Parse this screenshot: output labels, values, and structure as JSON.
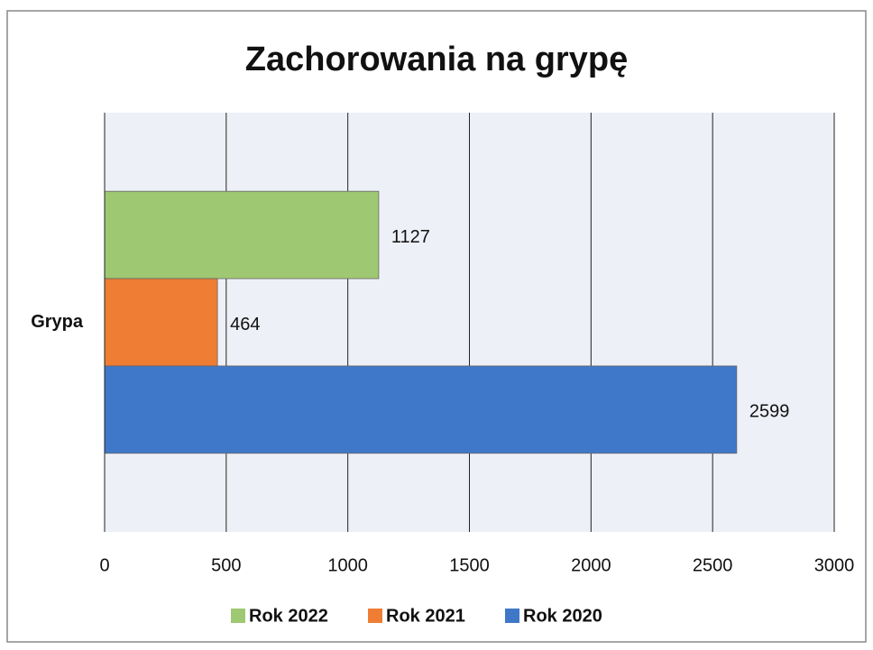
{
  "chart_data": {
    "type": "bar",
    "orientation": "horizontal",
    "title": "Zachorowania na grypę",
    "categories": [
      "Grypa"
    ],
    "series": [
      {
        "name": "Rok 2022",
        "color": "#9fc872",
        "values": [
          1127
        ]
      },
      {
        "name": "Rok 2021",
        "color": "#ef7d33",
        "values": [
          464
        ]
      },
      {
        "name": "Rok 2020",
        "color": "#3f78c8",
        "values": [
          2599
        ]
      }
    ],
    "xlim": [
      0,
      3000
    ],
    "xticks": [
      0,
      500,
      1000,
      1500,
      2000,
      2500,
      3000
    ],
    "grid": true,
    "legend": "bottom"
  }
}
